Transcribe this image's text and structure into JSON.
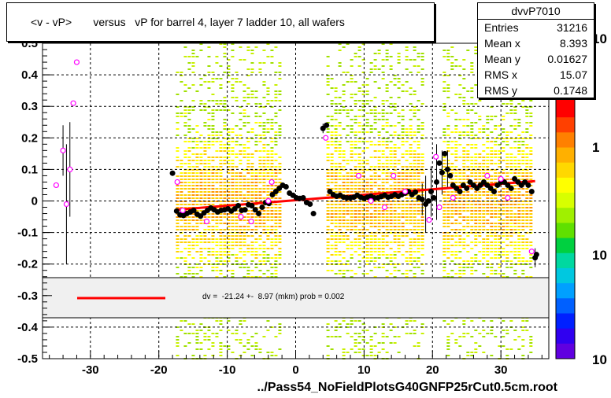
{
  "title": "<v - vP>       versus   vP for barrel 4, layer 7 ladder 10, all wafers",
  "stats": {
    "name": "dvvP7010",
    "rows": [
      {
        "label": "Entries",
        "value": "31216"
      },
      {
        "label": "Mean x",
        "value": "8.393"
      },
      {
        "label": "Mean y",
        "value": "0.01627"
      },
      {
        "label": "RMS x",
        "value": "15.07"
      },
      {
        "label": "RMS y",
        "value": "0.1748"
      }
    ]
  },
  "legend": {
    "text": "dv =  -21.24 +-  8.97 (mkm) prob = 0.002",
    "line_color": "#ff0000"
  },
  "x_caption": "../Pass54_NoFieldPlotsG40GNFP25rCut0.5cm.root",
  "palette_labels": [
    "10",
    "1",
    "10",
    "10"
  ],
  "colors": {
    "frame": "#000000",
    "fit": "#ff0000",
    "points": "#000000",
    "open_points": "#ff00ff",
    "legend_bg": "#f0f0f0"
  },
  "chart_data": {
    "type": "scatter",
    "title": "<v - vP>       versus   vP for barrel 4, layer 7 ladder 10, all wafers",
    "xlabel": "../Pass54_NoFieldPlotsG40GNFP25rCut0.5cm.root",
    "ylabel": "",
    "xlim": [
      -37,
      37
    ],
    "ylim": [
      -0.5,
      0.5
    ],
    "x_ticks": [
      -30,
      -20,
      -10,
      0,
      10,
      20,
      30
    ],
    "y_ticks": [
      -0.5,
      -0.4,
      -0.3,
      -0.2,
      -0.1,
      0,
      0.1,
      0.2,
      0.3,
      0.4,
      0.5
    ],
    "y_tick_labels": [
      "-0.5",
      "-0.4",
      "-0.3",
      "-0.2",
      "-0.1",
      "0",
      "0.1",
      "0.2",
      "0.3",
      "0.4",
      "0.5"
    ],
    "grid": true,
    "heatmap_bands": [
      [
        -17.5,
        -2.5
      ],
      [
        4.5,
        18.5
      ],
      [
        21.5,
        34.5
      ]
    ],
    "fit_line": {
      "x": [
        -17.5,
        35.0
      ],
      "y": [
        -0.028,
        0.063
      ]
    },
    "profile_points": [
      {
        "x": -18,
        "y": 0.088
      },
      {
        "x": -17.4,
        "y": -0.032
      },
      {
        "x": -16.9,
        "y": -0.044
      },
      {
        "x": -16.4,
        "y": -0.046
      },
      {
        "x": -15.9,
        "y": -0.04
      },
      {
        "x": -15.4,
        "y": -0.035
      },
      {
        "x": -14.9,
        "y": -0.03
      },
      {
        "x": -14.4,
        "y": -0.042
      },
      {
        "x": -13.9,
        "y": -0.048
      },
      {
        "x": -13.4,
        "y": -0.038
      },
      {
        "x": -12.9,
        "y": -0.03
      },
      {
        "x": -12.4,
        "y": -0.022
      },
      {
        "x": -11.9,
        "y": -0.028
      },
      {
        "x": -11.4,
        "y": -0.035
      },
      {
        "x": -10.9,
        "y": -0.03
      },
      {
        "x": -10.4,
        "y": -0.028
      },
      {
        "x": -9.9,
        "y": -0.025
      },
      {
        "x": -9.4,
        "y": -0.032
      },
      {
        "x": -8.9,
        "y": -0.025
      },
      {
        "x": -8.4,
        "y": -0.015
      },
      {
        "x": -7.9,
        "y": -0.03
      },
      {
        "x": -7.4,
        "y": -0.028
      },
      {
        "x": -6.9,
        "y": -0.012
      },
      {
        "x": -6.4,
        "y": -0.015
      },
      {
        "x": -5.9,
        "y": -0.028
      },
      {
        "x": -5.4,
        "y": -0.04
      },
      {
        "x": -4.9,
        "y": -0.02
      },
      {
        "x": -4.4,
        "y": -0.005
      },
      {
        "x": -3.9,
        "y": -0.008
      },
      {
        "x": -3.4,
        "y": 0.02
      },
      {
        "x": -2.9,
        "y": 0.03
      },
      {
        "x": -2.4,
        "y": 0.04
      },
      {
        "x": -1.9,
        "y": 0.05
      },
      {
        "x": -1.4,
        "y": 0.045
      },
      {
        "x": -0.9,
        "y": 0.025
      },
      {
        "x": -0.4,
        "y": 0.018
      },
      {
        "x": 0.1,
        "y": 0.01
      },
      {
        "x": 0.6,
        "y": 0.008
      },
      {
        "x": 1.1,
        "y": 0.01
      },
      {
        "x": 1.6,
        "y": -0.005
      },
      {
        "x": 2.1,
        "y": -0.01
      },
      {
        "x": 2.6,
        "y": -0.04
      },
      {
        "x": 4.0,
        "y": 0.23
      },
      {
        "x": 4.5,
        "y": 0.24
      },
      {
        "x": 5.0,
        "y": 0.03
      },
      {
        "x": 5.5,
        "y": 0.02
      },
      {
        "x": 6.0,
        "y": 0.015
      },
      {
        "x": 6.5,
        "y": 0.018
      },
      {
        "x": 7.0,
        "y": 0.012
      },
      {
        "x": 7.5,
        "y": 0.01
      },
      {
        "x": 8.0,
        "y": 0.01
      },
      {
        "x": 8.5,
        "y": 0.012
      },
      {
        "x": 9.0,
        "y": 0.018
      },
      {
        "x": 9.5,
        "y": 0.012
      },
      {
        "x": 10.0,
        "y": 0.008
      },
      {
        "x": 10.5,
        "y": 0.012
      },
      {
        "x": 11.0,
        "y": 0.015
      },
      {
        "x": 11.5,
        "y": 0.01
      },
      {
        "x": 12.0,
        "y": 0.01
      },
      {
        "x": 12.5,
        "y": 0.014
      },
      {
        "x": 13.0,
        "y": 0.018
      },
      {
        "x": 13.5,
        "y": 0.012
      },
      {
        "x": 14.0,
        "y": 0.015
      },
      {
        "x": 14.5,
        "y": 0.02
      },
      {
        "x": 15.0,
        "y": 0.015
      },
      {
        "x": 15.5,
        "y": 0.02
      },
      {
        "x": 16.0,
        "y": 0.025
      },
      {
        "x": 16.5,
        "y": 0.03
      },
      {
        "x": 17.0,
        "y": 0.02
      },
      {
        "x": 17.5,
        "y": 0.028
      },
      {
        "x": 18.0,
        "y": 0.01
      },
      {
        "x": 18.5,
        "y": 0.005
      },
      {
        "x": 19.0,
        "y": -0.01
      },
      {
        "x": 19.4,
        "y": 0.0
      },
      {
        "x": 19.8,
        "y": 0.03
      },
      {
        "x": 20.2,
        "y": 0.01
      },
      {
        "x": 20.6,
        "y": 0.06
      },
      {
        "x": 21.0,
        "y": 0.12
      },
      {
        "x": 21.4,
        "y": 0.09
      },
      {
        "x": 21.8,
        "y": 0.15
      },
      {
        "x": 22.2,
        "y": 0.1
      },
      {
        "x": 22.6,
        "y": 0.08
      },
      {
        "x": 23.0,
        "y": 0.05
      },
      {
        "x": 23.5,
        "y": 0.04
      },
      {
        "x": 24.0,
        "y": 0.03
      },
      {
        "x": 24.5,
        "y": 0.05
      },
      {
        "x": 25.0,
        "y": 0.04
      },
      {
        "x": 25.5,
        "y": 0.06
      },
      {
        "x": 26.0,
        "y": 0.05
      },
      {
        "x": 26.5,
        "y": 0.04
      },
      {
        "x": 27.0,
        "y": 0.05
      },
      {
        "x": 27.5,
        "y": 0.06
      },
      {
        "x": 28.0,
        "y": 0.05
      },
      {
        "x": 28.5,
        "y": 0.04
      },
      {
        "x": 29.0,
        "y": 0.03
      },
      {
        "x": 29.5,
        "y": 0.05
      },
      {
        "x": 30.0,
        "y": 0.06
      },
      {
        "x": 30.5,
        "y": 0.06
      },
      {
        "x": 31.0,
        "y": 0.05
      },
      {
        "x": 31.5,
        "y": 0.04
      },
      {
        "x": 32.0,
        "y": 0.07
      },
      {
        "x": 32.5,
        "y": 0.06
      },
      {
        "x": 33.0,
        "y": 0.05
      },
      {
        "x": 33.5,
        "y": 0.06
      },
      {
        "x": 34.0,
        "y": 0.05
      },
      {
        "x": 34.5,
        "y": 0.03
      },
      {
        "x": 35.0,
        "y": -0.18
      },
      {
        "x": 35.2,
        "y": -0.17
      }
    ],
    "error_bars": [
      {
        "x": 19.0,
        "y": -0.01,
        "err": 0.09
      },
      {
        "x": 19.8,
        "y": 0.03,
        "err": 0.08
      },
      {
        "x": 20.6,
        "y": 0.06,
        "err": 0.12
      },
      {
        "x": 21.4,
        "y": 0.09,
        "err": 0.07
      },
      {
        "x": 22.2,
        "y": 0.1,
        "err": 0.06
      },
      {
        "x": 18.5,
        "y": 0.005,
        "err": 0.05
      },
      {
        "x": 4.0,
        "y": 0.23,
        "err": 0.015
      },
      {
        "x": 35.0,
        "y": -0.18,
        "err": 0.03
      }
    ],
    "open_points": [
      {
        "x": -35,
        "y": 0.05
      },
      {
        "x": -34,
        "y": 0.16,
        "err": 0.08
      },
      {
        "x": -33.5,
        "y": -0.01,
        "err": 0.19
      },
      {
        "x": -33.0,
        "y": 0.1,
        "err": 0.15
      },
      {
        "x": -32.5,
        "y": 0.31
      },
      {
        "x": -32.0,
        "y": 0.44
      },
      {
        "x": -17.3,
        "y": 0.06
      },
      {
        "x": -16.5,
        "y": -0.03
      },
      {
        "x": -13.0,
        "y": -0.065
      },
      {
        "x": -8.0,
        "y": -0.05
      },
      {
        "x": -6.5,
        "y": -0.065
      },
      {
        "x": -4.0,
        "y": 0.0
      },
      {
        "x": -3.5,
        "y": 0.06
      },
      {
        "x": 4.4,
        "y": 0.2
      },
      {
        "x": 9.2,
        "y": 0.08
      },
      {
        "x": 11.0,
        "y": 0.0
      },
      {
        "x": 13.0,
        "y": -0.02
      },
      {
        "x": 14.3,
        "y": 0.08
      },
      {
        "x": 16.0,
        "y": 0.03
      },
      {
        "x": 19.5,
        "y": -0.06
      },
      {
        "x": 20.5,
        "y": 0.14
      },
      {
        "x": 21.0,
        "y": -0.02
      },
      {
        "x": 23.0,
        "y": 0.01
      },
      {
        "x": 28.0,
        "y": 0.08
      },
      {
        "x": 30.0,
        "y": 0.07
      },
      {
        "x": 31.0,
        "y": 0.01
      },
      {
        "x": 34.5,
        "y": -0.16
      }
    ]
  }
}
